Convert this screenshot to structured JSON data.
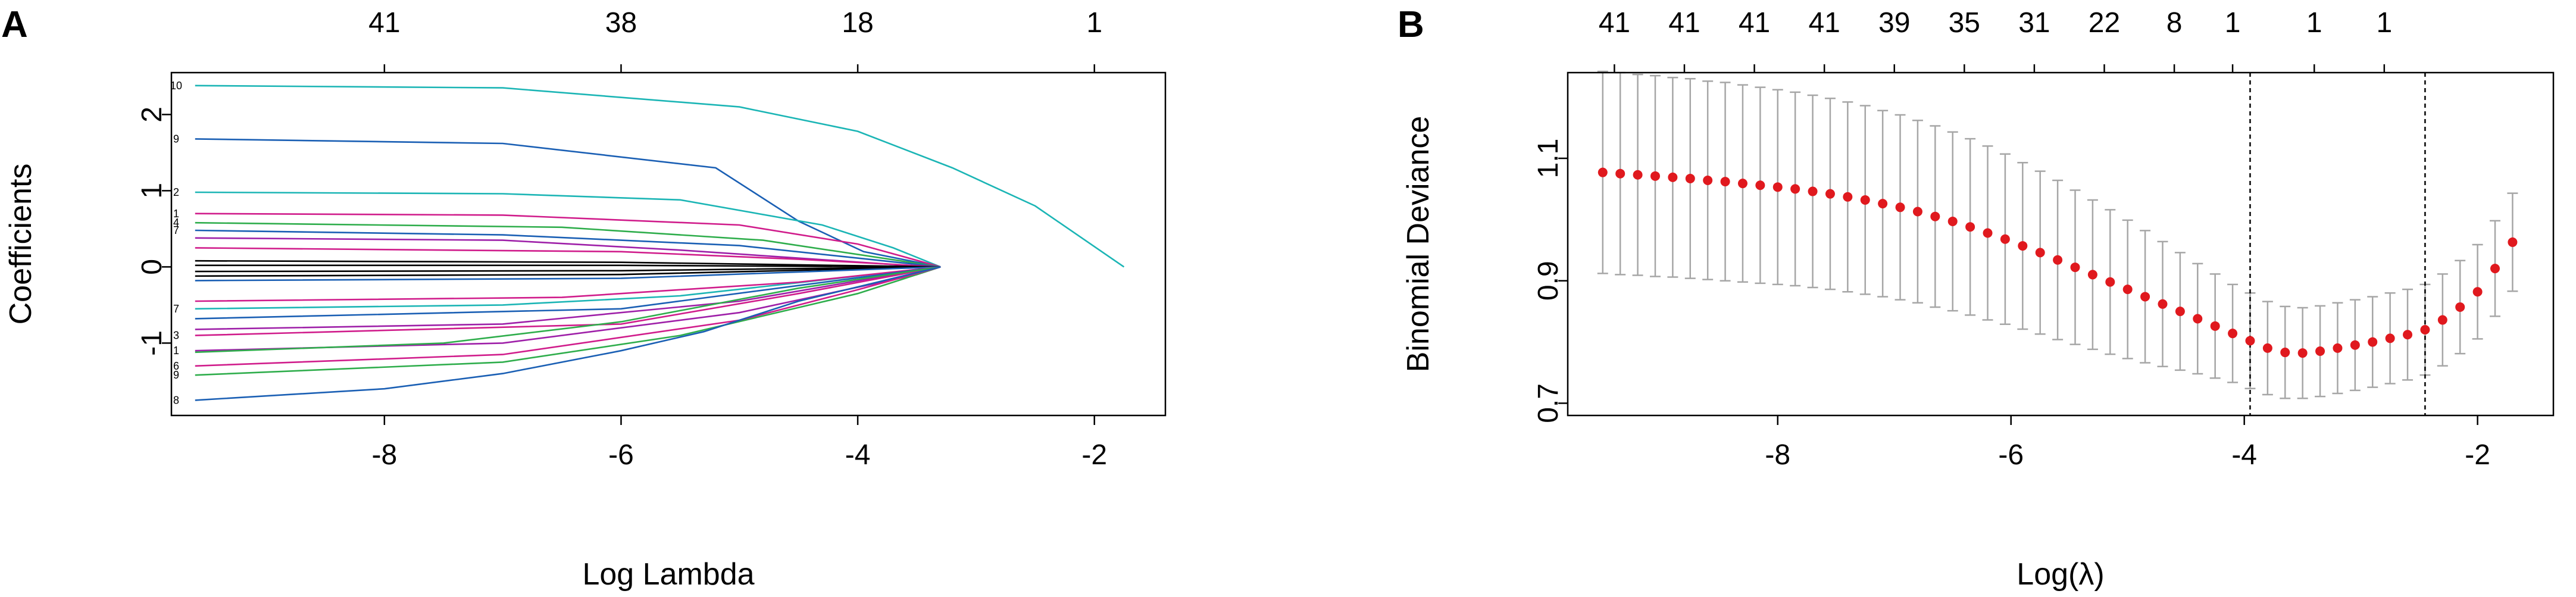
{
  "panels": {
    "a": {
      "letter": "A"
    },
    "b": {
      "letter": "B"
    }
  },
  "chart_data": [
    {
      "type": "line",
      "xlabel": "Log Lambda",
      "ylabel": "Coefficients",
      "xlim": [
        -9.8,
        -1.4
      ],
      "ylim": [
        -1.95,
        2.55
      ],
      "x_ticks": [
        -8,
        -6,
        -4,
        -2
      ],
      "y_ticks": [
        -1,
        0,
        1,
        2
      ],
      "top_ticks": {
        "positions": [
          -8,
          -6,
          -4,
          -2
        ],
        "labels": [
          "41",
          "38",
          "18",
          "1"
        ]
      },
      "grid": false,
      "series_labels": [
        "10",
        "9",
        "2",
        "1",
        "4",
        "7",
        "3",
        "1",
        "6",
        "9",
        "8",
        "7"
      ],
      "series": [
        {
          "color": "#1BB5B5",
          "values": [
            [
              -9.6,
              2.38
            ],
            [
              -7,
              2.35
            ],
            [
              -5,
              2.1
            ],
            [
              -4,
              1.78
            ],
            [
              -3.2,
              1.3
            ],
            [
              -2.5,
              0.8
            ],
            [
              -1.75,
              0
            ]
          ]
        },
        {
          "color": "#1A5FB4",
          "values": [
            [
              -9.6,
              1.68
            ],
            [
              -7,
              1.62
            ],
            [
              -5.2,
              1.3
            ],
            [
              -4.5,
              0.6
            ],
            [
              -3.95,
              0.2
            ],
            [
              -3.3,
              0
            ]
          ]
        },
        {
          "color": "#1BB5B5",
          "values": [
            [
              -9.6,
              0.98
            ],
            [
              -7,
              0.96
            ],
            [
              -5.5,
              0.88
            ],
            [
              -4.3,
              0.55
            ],
            [
              -3.7,
              0.25
            ],
            [
              -3.3,
              0
            ]
          ]
        },
        {
          "color": "#D01C8B",
          "values": [
            [
              -9.6,
              0.7
            ],
            [
              -7,
              0.68
            ],
            [
              -5,
              0.55
            ],
            [
              -4,
              0.3
            ],
            [
              -3.3,
              0
            ]
          ]
        },
        {
          "color": "#2EAD4B",
          "values": [
            [
              -9.6,
              0.58
            ],
            [
              -6.5,
              0.52
            ],
            [
              -4.8,
              0.35
            ],
            [
              -3.3,
              0
            ]
          ]
        },
        {
          "color": "#1A5FB4",
          "values": [
            [
              -9.6,
              0.48
            ],
            [
              -7,
              0.42
            ],
            [
              -5,
              0.28
            ],
            [
              -3.3,
              0
            ]
          ]
        },
        {
          "color": "#9E1FA8",
          "values": [
            [
              -9.6,
              0.38
            ],
            [
              -7,
              0.35
            ],
            [
              -5.5,
              0.22
            ],
            [
              -3.4,
              0
            ]
          ]
        },
        {
          "color": "#D01C8B",
          "values": [
            [
              -9.6,
              0.25
            ],
            [
              -6,
              0.2
            ],
            [
              -4.5,
              0.1
            ],
            [
              -3.3,
              0
            ]
          ]
        },
        {
          "color": "#000000",
          "values": [
            [
              -9.6,
              0.08
            ],
            [
              -6,
              0.06
            ],
            [
              -3.3,
              0
            ]
          ]
        },
        {
          "color": "#000000",
          "values": [
            [
              -9.6,
              0.02
            ],
            [
              -6,
              0.02
            ],
            [
              -3.3,
              0
            ]
          ]
        },
        {
          "color": "#000000",
          "values": [
            [
              -9.6,
              -0.06
            ],
            [
              -6,
              -0.05
            ],
            [
              -3.3,
              0
            ]
          ]
        },
        {
          "color": "#000000",
          "values": [
            [
              -9.6,
              -0.12
            ],
            [
              -6,
              -0.1
            ],
            [
              -3.3,
              0
            ]
          ]
        },
        {
          "color": "#1A5FB4",
          "values": [
            [
              -9.6,
              -0.18
            ],
            [
              -6,
              -0.15
            ],
            [
              -3.3,
              0
            ]
          ]
        },
        {
          "color": "#1BB5B5",
          "values": [
            [
              -9.6,
              -0.55
            ],
            [
              -7,
              -0.5
            ],
            [
              -5.5,
              -0.38
            ],
            [
              -3.3,
              0
            ]
          ]
        },
        {
          "color": "#D01C8B",
          "values": [
            [
              -9.6,
              -0.45
            ],
            [
              -6.5,
              -0.4
            ],
            [
              -4.5,
              -0.2
            ],
            [
              -3.3,
              0
            ]
          ]
        },
        {
          "color": "#1A5FB4",
          "values": [
            [
              -9.6,
              -0.68
            ],
            [
              -6,
              -0.55
            ],
            [
              -3.3,
              0
            ]
          ]
        },
        {
          "color": "#9E1FA8",
          "values": [
            [
              -9.6,
              -0.82
            ],
            [
              -7,
              -0.75
            ],
            [
              -5,
              -0.45
            ],
            [
              -3.5,
              -0.05
            ],
            [
              -3.3,
              0
            ]
          ]
        },
        {
          "color": "#D01C8B",
          "values": [
            [
              -9.6,
              -0.9
            ],
            [
              -6,
              -0.75
            ],
            [
              -4.5,
              -0.35
            ],
            [
              -3.3,
              0
            ]
          ]
        },
        {
          "color": "#9E1FA8",
          "values": [
            [
              -9.6,
              -1.1
            ],
            [
              -7,
              -1.0
            ],
            [
              -5,
              -0.6
            ],
            [
              -3.5,
              -0.1
            ],
            [
              -3.3,
              0
            ]
          ]
        },
        {
          "color": "#2EAD4B",
          "values": [
            [
              -9.6,
              -1.12
            ],
            [
              -7.5,
              -1.0
            ],
            [
              -6,
              -0.72
            ],
            [
              -4.5,
              -0.28
            ],
            [
              -3.3,
              0
            ]
          ]
        },
        {
          "color": "#2EAD4B",
          "values": [
            [
              -9.6,
              -1.42
            ],
            [
              -7,
              -1.25
            ],
            [
              -5.5,
              -0.9
            ],
            [
              -4,
              -0.35
            ],
            [
              -3.3,
              0
            ]
          ]
        },
        {
          "color": "#D01C8B",
          "values": [
            [
              -9.6,
              -1.3
            ],
            [
              -7,
              -1.15
            ],
            [
              -5,
              -0.7
            ],
            [
              -4,
              -0.3
            ],
            [
              -3.3,
              0
            ]
          ]
        },
        {
          "color": "#1A5FB4",
          "values": [
            [
              -9.6,
              -1.75
            ],
            [
              -8,
              -1.6
            ],
            [
              -7,
              -1.4
            ],
            [
              -6,
              -1.1
            ],
            [
              -5.3,
              -0.85
            ],
            [
              -4.5,
              -0.45
            ],
            [
              -3.3,
              0
            ]
          ]
        }
      ]
    },
    {
      "type": "scatter",
      "xlabel": "Log(λ)",
      "ylabel": "Binomial Deviance",
      "xlim": [
        -9.8,
        -1.35
      ],
      "ylim": [
        0.68,
        1.24
      ],
      "x_ticks": [
        -8,
        -6,
        -4,
        -2
      ],
      "y_ticks": [
        0.7,
        0.9,
        1.1
      ],
      "y_tick_labels": [
        "0.7",
        "0.9",
        "1.1"
      ],
      "top_ticks": {
        "positions": [
          -9.4,
          -8.8,
          -8.2,
          -7.6,
          -7.0,
          -6.4,
          -5.8,
          -5.2,
          -4.6,
          -4.1,
          -3.4,
          -2.8
        ],
        "labels": [
          "41",
          "41",
          "41",
          "41",
          "39",
          "35",
          "31",
          "22",
          "8",
          "1",
          "1",
          "1"
        ]
      },
      "vlines": [
        -3.95,
        -2.45
      ],
      "grid": false,
      "point_color": "#E0191E",
      "errorbar_color": "#A6A6A6",
      "x": [
        -9.5,
        -9.35,
        -9.2,
        -9.05,
        -8.9,
        -8.75,
        -8.6,
        -8.45,
        -8.3,
        -8.15,
        -8.0,
        -7.85,
        -7.7,
        -7.55,
        -7.4,
        -7.25,
        -7.1,
        -6.95,
        -6.8,
        -6.65,
        -6.5,
        -6.35,
        -6.2,
        -6.05,
        -5.9,
        -5.75,
        -5.6,
        -5.45,
        -5.3,
        -5.15,
        -5.0,
        -4.85,
        -4.7,
        -4.55,
        -4.4,
        -4.25,
        -4.1,
        -3.95,
        -3.8,
        -3.65,
        -3.5,
        -3.35,
        -3.2,
        -3.05,
        -2.9,
        -2.75,
        -2.6,
        -2.45,
        -2.3,
        -2.15,
        -2.0,
        -1.85,
        -1.7
      ],
      "y": [
        1.077,
        1.075,
        1.073,
        1.071,
        1.069,
        1.067,
        1.064,
        1.062,
        1.059,
        1.056,
        1.053,
        1.05,
        1.046,
        1.042,
        1.037,
        1.032,
        1.026,
        1.02,
        1.013,
        1.005,
        0.997,
        0.988,
        0.978,
        0.968,
        0.957,
        0.946,
        0.934,
        0.922,
        0.91,
        0.898,
        0.886,
        0.874,
        0.862,
        0.85,
        0.838,
        0.826,
        0.814,
        0.802,
        0.79,
        0.783,
        0.782,
        0.785,
        0.79,
        0.795,
        0.8,
        0.806,
        0.812,
        0.82,
        0.836,
        0.857,
        0.882,
        0.92,
        0.963
      ],
      "err": [
        0.165,
        0.165,
        0.164,
        0.164,
        0.163,
        0.163,
        0.162,
        0.162,
        0.161,
        0.16,
        0.159,
        0.158,
        0.157,
        0.156,
        0.155,
        0.154,
        0.152,
        0.151,
        0.149,
        0.148,
        0.146,
        0.144,
        0.142,
        0.139,
        0.136,
        0.133,
        0.13,
        0.126,
        0.122,
        0.118,
        0.113,
        0.108,
        0.102,
        0.096,
        0.09,
        0.085,
        0.08,
        0.078,
        0.076,
        0.075,
        0.074,
        0.074,
        0.074,
        0.074,
        0.074,
        0.074,
        0.074,
        0.074,
        0.075,
        0.076,
        0.077,
        0.078,
        0.08
      ]
    }
  ]
}
